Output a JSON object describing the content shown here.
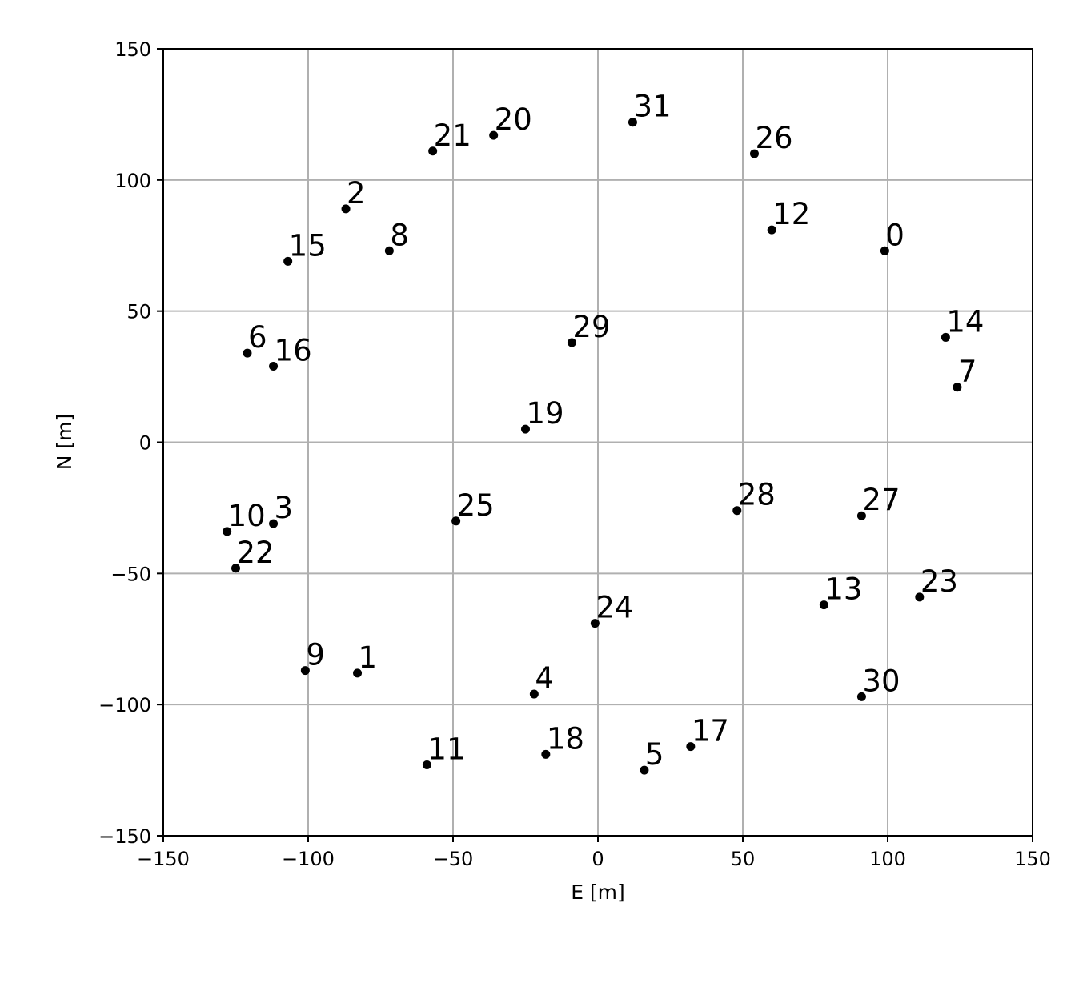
{
  "chart_data": {
    "type": "scatter",
    "xlabel": "E [m]",
    "ylabel": "N [m]",
    "xlim": [
      -150,
      150
    ],
    "ylim": [
      -150,
      150
    ],
    "xticks": [
      -150,
      -100,
      -50,
      0,
      50,
      100,
      150
    ],
    "yticks": [
      -150,
      -100,
      -50,
      0,
      50,
      100,
      150
    ],
    "xtick_labels": [
      "−150",
      "−100",
      "−50",
      "0",
      "50",
      "100",
      "150"
    ],
    "ytick_labels": [
      "−150",
      "−100",
      "−50",
      "0",
      "50",
      "100",
      "150"
    ],
    "grid": true,
    "point_color": "#000000",
    "points": [
      {
        "label": "0",
        "x": 99,
        "y": 73
      },
      {
        "label": "1",
        "x": -83,
        "y": -88
      },
      {
        "label": "2",
        "x": -87,
        "y": 89
      },
      {
        "label": "3",
        "x": -112,
        "y": -31
      },
      {
        "label": "4",
        "x": -22,
        "y": -96
      },
      {
        "label": "5",
        "x": 16,
        "y": -125
      },
      {
        "label": "6",
        "x": -121,
        "y": 34
      },
      {
        "label": "7",
        "x": 124,
        "y": 21
      },
      {
        "label": "8",
        "x": -72,
        "y": 73
      },
      {
        "label": "9",
        "x": -101,
        "y": -87
      },
      {
        "label": "10",
        "x": -128,
        "y": -34
      },
      {
        "label": "11",
        "x": -59,
        "y": -123
      },
      {
        "label": "12",
        "x": 60,
        "y": 81
      },
      {
        "label": "13",
        "x": 78,
        "y": -62
      },
      {
        "label": "14",
        "x": 120,
        "y": 40
      },
      {
        "label": "15",
        "x": -107,
        "y": 69
      },
      {
        "label": "16",
        "x": -112,
        "y": 29
      },
      {
        "label": "17",
        "x": 32,
        "y": -116
      },
      {
        "label": "18",
        "x": -18,
        "y": -119
      },
      {
        "label": "19",
        "x": -25,
        "y": 5
      },
      {
        "label": "20",
        "x": -36,
        "y": 117
      },
      {
        "label": "21",
        "x": -57,
        "y": 111
      },
      {
        "label": "22",
        "x": -125,
        "y": -48
      },
      {
        "label": "23",
        "x": 111,
        "y": -59
      },
      {
        "label": "24",
        "x": -1,
        "y": -69
      },
      {
        "label": "25",
        "x": -49,
        "y": -30
      },
      {
        "label": "26",
        "x": 54,
        "y": 110
      },
      {
        "label": "27",
        "x": 91,
        "y": -28
      },
      {
        "label": "28",
        "x": 48,
        "y": -26
      },
      {
        "label": "29",
        "x": -9,
        "y": 38
      },
      {
        "label": "30",
        "x": 91,
        "y": -97
      },
      {
        "label": "31",
        "x": 12,
        "y": 122
      }
    ]
  }
}
